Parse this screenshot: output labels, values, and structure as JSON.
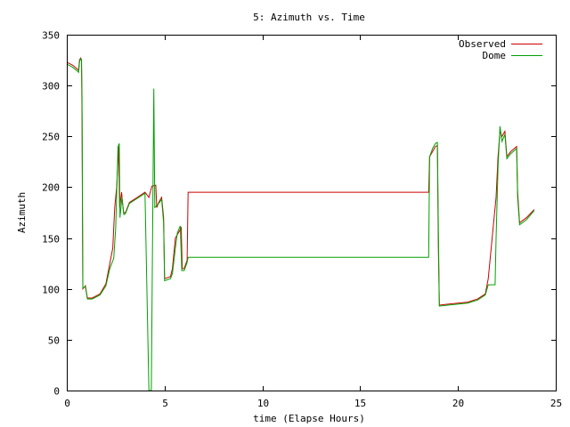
{
  "chart_data": {
    "type": "line",
    "title": "5: Azimuth vs. Time",
    "xlabel": "time (Elapse Hours)",
    "ylabel": "Azimuth",
    "xlim": [
      0,
      25
    ],
    "ylim": [
      0,
      350
    ],
    "xticks": [
      0,
      5,
      10,
      15,
      20,
      25
    ],
    "yticks": [
      0,
      50,
      100,
      150,
      200,
      250,
      300,
      350
    ],
    "grid": false,
    "legend_position": "top-right",
    "series": [
      {
        "name": "Observed",
        "color": "#cc0000",
        "points": [
          [
            0,
            323
          ],
          [
            0.3,
            320
          ],
          [
            0.55,
            316
          ],
          [
            0.6,
            315
          ],
          [
            0.65,
            325
          ],
          [
            0.7,
            327
          ],
          [
            0.75,
            325
          ],
          [
            0.78,
            270
          ],
          [
            0.82,
            100
          ],
          [
            0.95,
            103
          ],
          [
            1.05,
            91
          ],
          [
            1.3,
            91
          ],
          [
            1.7,
            95
          ],
          [
            2.0,
            105
          ],
          [
            2.2,
            125
          ],
          [
            2.35,
            140
          ],
          [
            2.45,
            180
          ],
          [
            2.55,
            200
          ],
          [
            2.65,
            240
          ],
          [
            2.7,
            180
          ],
          [
            2.8,
            195
          ],
          [
            2.9,
            175
          ],
          [
            3.0,
            175
          ],
          [
            3.2,
            185
          ],
          [
            3.6,
            190
          ],
          [
            4.0,
            195
          ],
          [
            4.2,
            190
          ],
          [
            4.35,
            201
          ],
          [
            4.55,
            202
          ],
          [
            4.6,
            180
          ],
          [
            4.7,
            185
          ],
          [
            4.85,
            190
          ],
          [
            4.95,
            170
          ],
          [
            5.0,
            110
          ],
          [
            5.3,
            112
          ],
          [
            5.4,
            120
          ],
          [
            5.55,
            150
          ],
          [
            5.7,
            155
          ],
          [
            5.85,
            160
          ],
          [
            5.9,
            120
          ],
          [
            6.0,
            120
          ],
          [
            6.15,
            128
          ],
          [
            6.2,
            195
          ],
          [
            18.5,
            195
          ],
          [
            18.55,
            230
          ],
          [
            18.7,
            235
          ],
          [
            18.85,
            240
          ],
          [
            18.95,
            241
          ],
          [
            19.0,
            140
          ],
          [
            19.05,
            84
          ],
          [
            19.5,
            85
          ],
          [
            20.5,
            87
          ],
          [
            21.0,
            90
          ],
          [
            21.4,
            95
          ],
          [
            21.55,
            110
          ],
          [
            21.75,
            150
          ],
          [
            21.95,
            190
          ],
          [
            22.05,
            230
          ],
          [
            22.15,
            255
          ],
          [
            22.25,
            250
          ],
          [
            22.4,
            255
          ],
          [
            22.5,
            230
          ],
          [
            22.7,
            235
          ],
          [
            23.0,
            240
          ],
          [
            23.05,
            195
          ],
          [
            23.15,
            165
          ],
          [
            23.5,
            170
          ],
          [
            23.9,
            178
          ]
        ]
      },
      {
        "name": "Dome",
        "color": "#00a000",
        "points": [
          [
            0,
            321
          ],
          [
            0.3,
            318
          ],
          [
            0.55,
            314
          ],
          [
            0.6,
            313
          ],
          [
            0.65,
            323
          ],
          [
            0.7,
            326
          ],
          [
            0.75,
            326
          ],
          [
            0.78,
            290
          ],
          [
            0.82,
            101
          ],
          [
            0.95,
            102
          ],
          [
            1.05,
            90
          ],
          [
            1.3,
            90
          ],
          [
            1.7,
            94
          ],
          [
            2.0,
            103
          ],
          [
            2.2,
            120
          ],
          [
            2.4,
            130
          ],
          [
            2.5,
            160
          ],
          [
            2.58,
            215
          ],
          [
            2.62,
            240
          ],
          [
            2.68,
            243
          ],
          [
            2.72,
            170
          ],
          [
            2.82,
            190
          ],
          [
            2.92,
            173
          ],
          [
            3.0,
            174
          ],
          [
            3.2,
            184
          ],
          [
            3.6,
            189
          ],
          [
            4.0,
            194
          ],
          [
            4.2,
            0
          ],
          [
            4.32,
            0
          ],
          [
            4.45,
            297
          ],
          [
            4.5,
            180
          ],
          [
            4.7,
            184
          ],
          [
            4.85,
            188
          ],
          [
            4.95,
            165
          ],
          [
            5.0,
            108
          ],
          [
            5.3,
            110
          ],
          [
            5.4,
            115
          ],
          [
            5.55,
            140
          ],
          [
            5.65,
            155
          ],
          [
            5.8,
            162
          ],
          [
            5.88,
            118
          ],
          [
            6.0,
            118
          ],
          [
            6.15,
            126
          ],
          [
            6.2,
            131
          ],
          [
            18.5,
            131
          ],
          [
            18.55,
            230
          ],
          [
            18.7,
            238
          ],
          [
            18.85,
            243
          ],
          [
            18.95,
            244
          ],
          [
            19.0,
            160
          ],
          [
            19.05,
            83
          ],
          [
            19.5,
            84
          ],
          [
            20.5,
            86
          ],
          [
            21.0,
            89
          ],
          [
            21.4,
            94
          ],
          [
            21.55,
            104
          ],
          [
            21.9,
            104
          ],
          [
            21.95,
            150
          ],
          [
            22.05,
            220
          ],
          [
            22.15,
            260
          ],
          [
            22.25,
            245
          ],
          [
            22.4,
            252
          ],
          [
            22.5,
            228
          ],
          [
            22.7,
            233
          ],
          [
            23.0,
            238
          ],
          [
            23.05,
            190
          ],
          [
            23.15,
            163
          ],
          [
            23.5,
            168
          ],
          [
            23.9,
            177
          ]
        ]
      }
    ]
  }
}
